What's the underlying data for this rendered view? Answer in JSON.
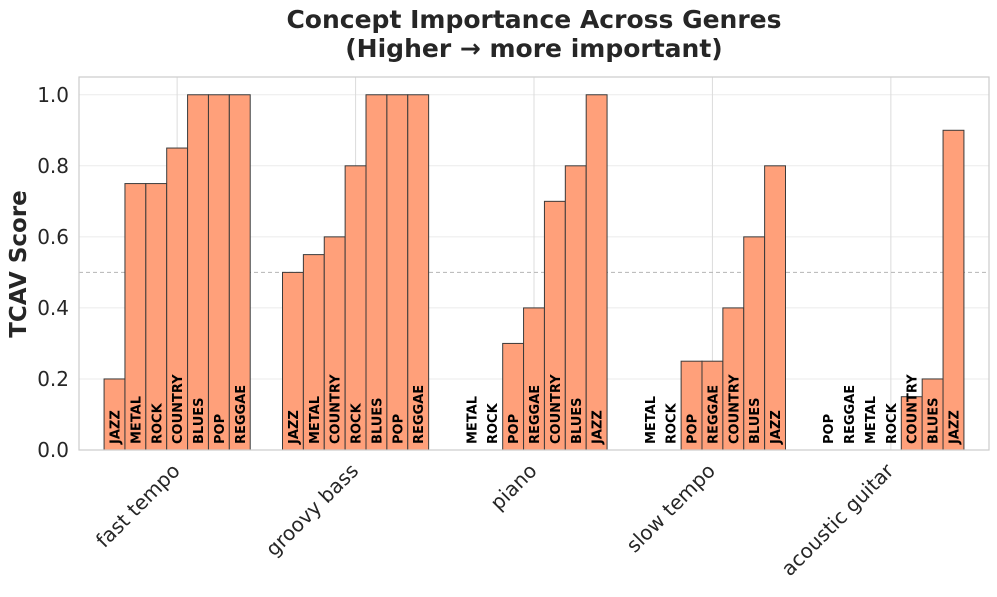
{
  "chart_data": {
    "type": "bar",
    "title_lines": [
      "Concept Importance Across Genres",
      "(Higher → more important)"
    ],
    "xlabel": "",
    "ylabel": "TCAV Score",
    "ylim": [
      0,
      1.05
    ],
    "yticks": [
      "0.0",
      "0.2",
      "0.4",
      "0.6",
      "0.8",
      "1.0"
    ],
    "reference_line": 0.5,
    "grid": true,
    "bar_color": "#ffa07a",
    "edge_color": "#3a3a3a",
    "groups": [
      {
        "concept": "fast tempo",
        "bars": [
          {
            "genre": "JAZZ",
            "value": 0.2
          },
          {
            "genre": "METAL",
            "value": 0.75
          },
          {
            "genre": "ROCK",
            "value": 0.75
          },
          {
            "genre": "COUNTRY",
            "value": 0.85
          },
          {
            "genre": "BLUES",
            "value": 1.0
          },
          {
            "genre": "POP",
            "value": 1.0
          },
          {
            "genre": "REGGAE",
            "value": 1.0
          }
        ]
      },
      {
        "concept": "groovy bass",
        "bars": [
          {
            "genre": "JAZZ",
            "value": 0.5
          },
          {
            "genre": "METAL",
            "value": 0.55
          },
          {
            "genre": "COUNTRY",
            "value": 0.6
          },
          {
            "genre": "ROCK",
            "value": 0.8
          },
          {
            "genre": "BLUES",
            "value": 1.0
          },
          {
            "genre": "POP",
            "value": 1.0
          },
          {
            "genre": "REGGAE",
            "value": 1.0
          }
        ]
      },
      {
        "concept": "piano",
        "bars": [
          {
            "genre": "METAL",
            "value": 0.0
          },
          {
            "genre": "ROCK",
            "value": 0.0
          },
          {
            "genre": "POP",
            "value": 0.3
          },
          {
            "genre": "REGGAE",
            "value": 0.4
          },
          {
            "genre": "COUNTRY",
            "value": 0.7
          },
          {
            "genre": "BLUES",
            "value": 0.8
          },
          {
            "genre": "JAZZ",
            "value": 1.0
          }
        ]
      },
      {
        "concept": "slow tempo",
        "bars": [
          {
            "genre": "METAL",
            "value": 0.0
          },
          {
            "genre": "ROCK",
            "value": 0.0
          },
          {
            "genre": "POP",
            "value": 0.25
          },
          {
            "genre": "REGGAE",
            "value": 0.25
          },
          {
            "genre": "COUNTRY",
            "value": 0.4
          },
          {
            "genre": "BLUES",
            "value": 0.6
          },
          {
            "genre": "JAZZ",
            "value": 0.8
          }
        ]
      },
      {
        "concept": "acoustic guitar",
        "bars": [
          {
            "genre": "POP",
            "value": 0.0
          },
          {
            "genre": "REGGAE",
            "value": 0.0
          },
          {
            "genre": "METAL",
            "value": 0.0
          },
          {
            "genre": "ROCK",
            "value": 0.0
          },
          {
            "genre": "COUNTRY",
            "value": 0.15
          },
          {
            "genre": "BLUES",
            "value": 0.2
          },
          {
            "genre": "JAZZ",
            "value": 0.9
          }
        ]
      }
    ]
  }
}
